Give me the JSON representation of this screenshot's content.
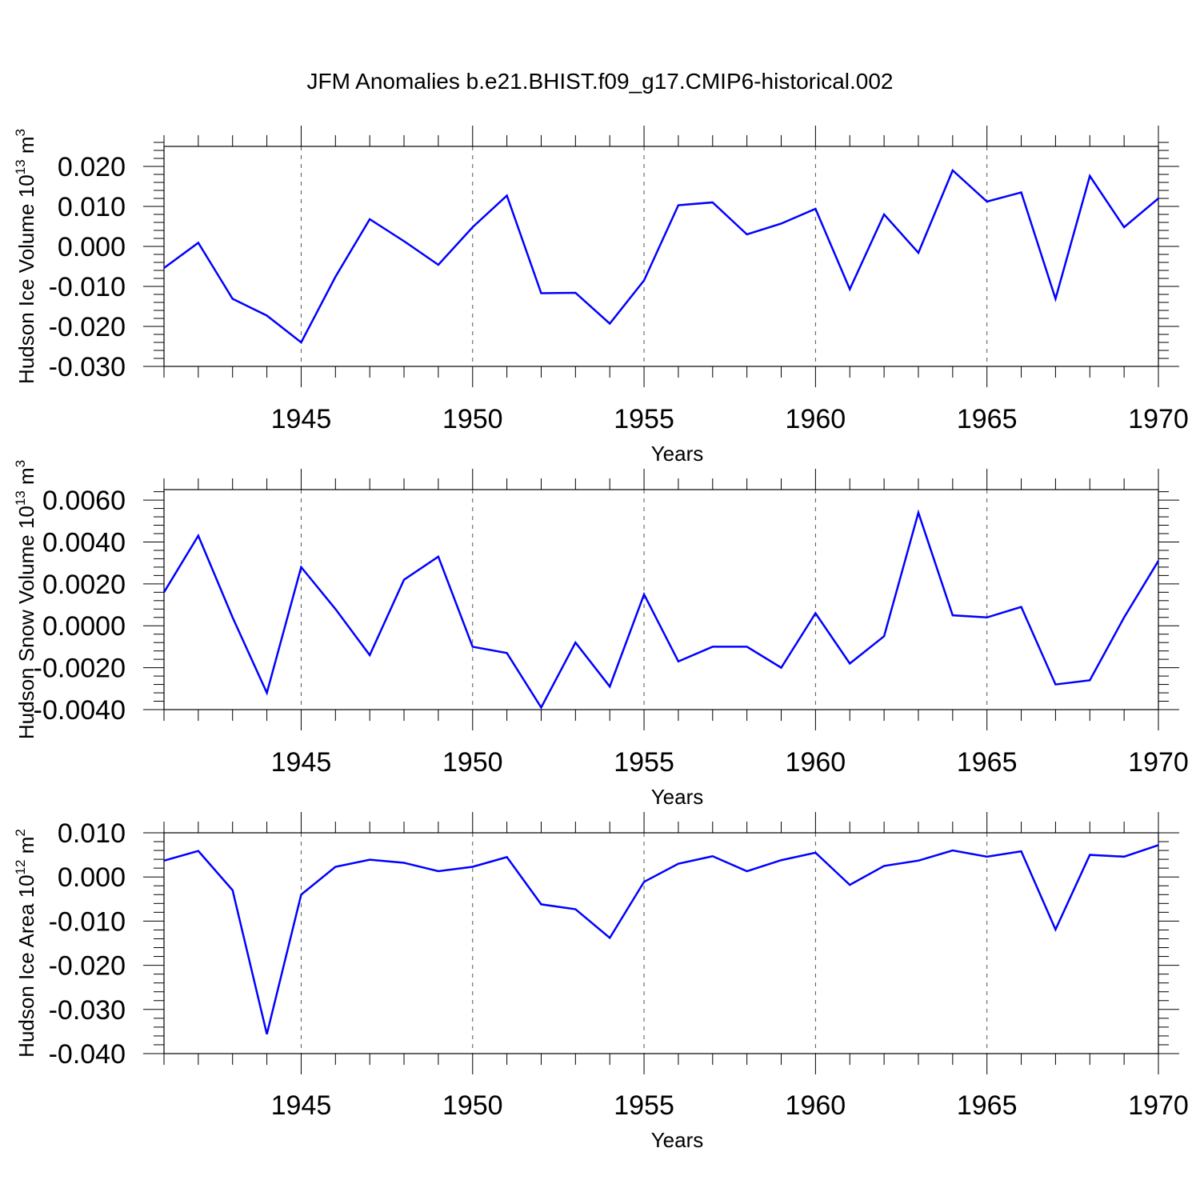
{
  "title": "JFM Anomalies b.e21.BHIST.f09_g17.CMIP6-historical.002",
  "line_color": "#0000ff",
  "chart_data": [
    {
      "type": "line",
      "ylabel": "Hudson Ice Volume 10",
      "ylabel_exp": "13",
      "ylabel_unit": " m",
      "ylabel_unit_exp": "3",
      "xlabel": "Years",
      "xlim": [
        1941,
        1970
      ],
      "ylim": [
        -0.03,
        0.025
      ],
      "yticks": [
        -0.03,
        -0.02,
        -0.01,
        0.0,
        0.01,
        0.02
      ],
      "ytick_labels": [
        "-0.030",
        "-0.020",
        "-0.010",
        "0.000",
        "0.010",
        "0.020"
      ],
      "xticks": [
        1945,
        1950,
        1955,
        1960,
        1965,
        1970
      ],
      "xtick_labels": [
        "1945",
        "1950",
        "1955",
        "1960",
        "1965",
        "1970"
      ],
      "x": [
        1941,
        1942,
        1943,
        1944,
        1945,
        1946,
        1947,
        1948,
        1949,
        1950,
        1951,
        1952,
        1953,
        1954,
        1955,
        1956,
        1957,
        1958,
        1959,
        1960,
        1961,
        1962,
        1963,
        1964,
        1965,
        1966,
        1967,
        1968,
        1969,
        1970
      ],
      "series": [
        {
          "name": "Hudson Ice Volume",
          "values": [
            -0.0054,
            0.0009,
            -0.0131,
            -0.0173,
            -0.024,
            -0.0076,
            0.0068,
            0.0013,
            -0.0046,
            0.0048,
            0.0127,
            -0.0117,
            -0.0116,
            -0.0193,
            -0.0085,
            0.0103,
            0.011,
            0.003,
            0.0057,
            0.0094,
            -0.0107,
            0.008,
            -0.0016,
            0.019,
            0.0112,
            0.0135,
            -0.0131,
            0.0176,
            0.0048,
            0.012
          ]
        }
      ]
    },
    {
      "type": "line",
      "ylabel": "Hudson Snow Volume 10",
      "ylabel_exp": "13",
      "ylabel_unit": " m",
      "ylabel_unit_exp": "3",
      "xlabel": "Years",
      "xlim": [
        1941,
        1970
      ],
      "ylim": [
        -0.004,
        0.0065
      ],
      "yticks": [
        -0.004,
        -0.002,
        0.0,
        0.002,
        0.004,
        0.006
      ],
      "ytick_labels": [
        "-0.0040",
        "-0.0020",
        "0.0000",
        "0.0020",
        "0.0040",
        "0.0060"
      ],
      "xticks": [
        1945,
        1950,
        1955,
        1960,
        1965,
        1970
      ],
      "xtick_labels": [
        "1945",
        "1950",
        "1955",
        "1960",
        "1965",
        "1970"
      ],
      "x": [
        1941,
        1942,
        1943,
        1944,
        1945,
        1946,
        1947,
        1948,
        1949,
        1950,
        1951,
        1952,
        1953,
        1954,
        1955,
        1956,
        1957,
        1958,
        1959,
        1960,
        1961,
        1962,
        1963,
        1964,
        1965,
        1966,
        1967,
        1968,
        1969,
        1970
      ],
      "series": [
        {
          "name": "Hudson Snow Volume",
          "values": [
            0.0016,
            0.0043,
            0.0004,
            -0.0032,
            0.0028,
            0.0008,
            -0.0014,
            0.0022,
            0.0033,
            -0.001,
            -0.0013,
            -0.0039,
            -0.0008,
            -0.0029,
            0.0015,
            -0.0017,
            -0.001,
            -0.001,
            -0.002,
            0.0006,
            -0.0018,
            -0.0005,
            0.0054,
            0.0005,
            0.0004,
            0.0009,
            -0.0028,
            -0.0026,
            0.0004,
            0.0031
          ]
        }
      ]
    },
    {
      "type": "line",
      "ylabel": "Hudson Ice Area 10",
      "ylabel_exp": "12",
      "ylabel_unit": " m",
      "ylabel_unit_exp": "2",
      "xlabel": "Years",
      "xlim": [
        1941,
        1970
      ],
      "ylim": [
        -0.04,
        0.01
      ],
      "yticks": [
        -0.04,
        -0.03,
        -0.02,
        -0.01,
        0.0,
        0.01
      ],
      "ytick_labels": [
        "-0.040",
        "-0.030",
        "-0.020",
        "-0.010",
        "0.000",
        "0.010"
      ],
      "xticks": [
        1945,
        1950,
        1955,
        1960,
        1965,
        1970
      ],
      "xtick_labels": [
        "1945",
        "1950",
        "1955",
        "1960",
        "1965",
        "1970"
      ],
      "x": [
        1941,
        1942,
        1943,
        1944,
        1945,
        1946,
        1947,
        1948,
        1949,
        1950,
        1951,
        1952,
        1953,
        1954,
        1955,
        1956,
        1957,
        1958,
        1959,
        1960,
        1961,
        1962,
        1963,
        1964,
        1965,
        1966,
        1967,
        1968,
        1969,
        1970
      ],
      "series": [
        {
          "name": "Hudson Ice Area",
          "values": [
            0.0037,
            0.0059,
            -0.003,
            -0.0356,
            -0.004,
            0.0023,
            0.0039,
            0.0032,
            0.0013,
            0.0023,
            0.0045,
            -0.0062,
            -0.0073,
            -0.0138,
            -0.0011,
            0.003,
            0.0047,
            0.0013,
            0.0038,
            0.0055,
            -0.0018,
            0.0025,
            0.0037,
            0.006,
            0.0046,
            0.0058,
            -0.0119,
            0.005,
            0.0046,
            0.0072
          ]
        }
      ]
    }
  ]
}
